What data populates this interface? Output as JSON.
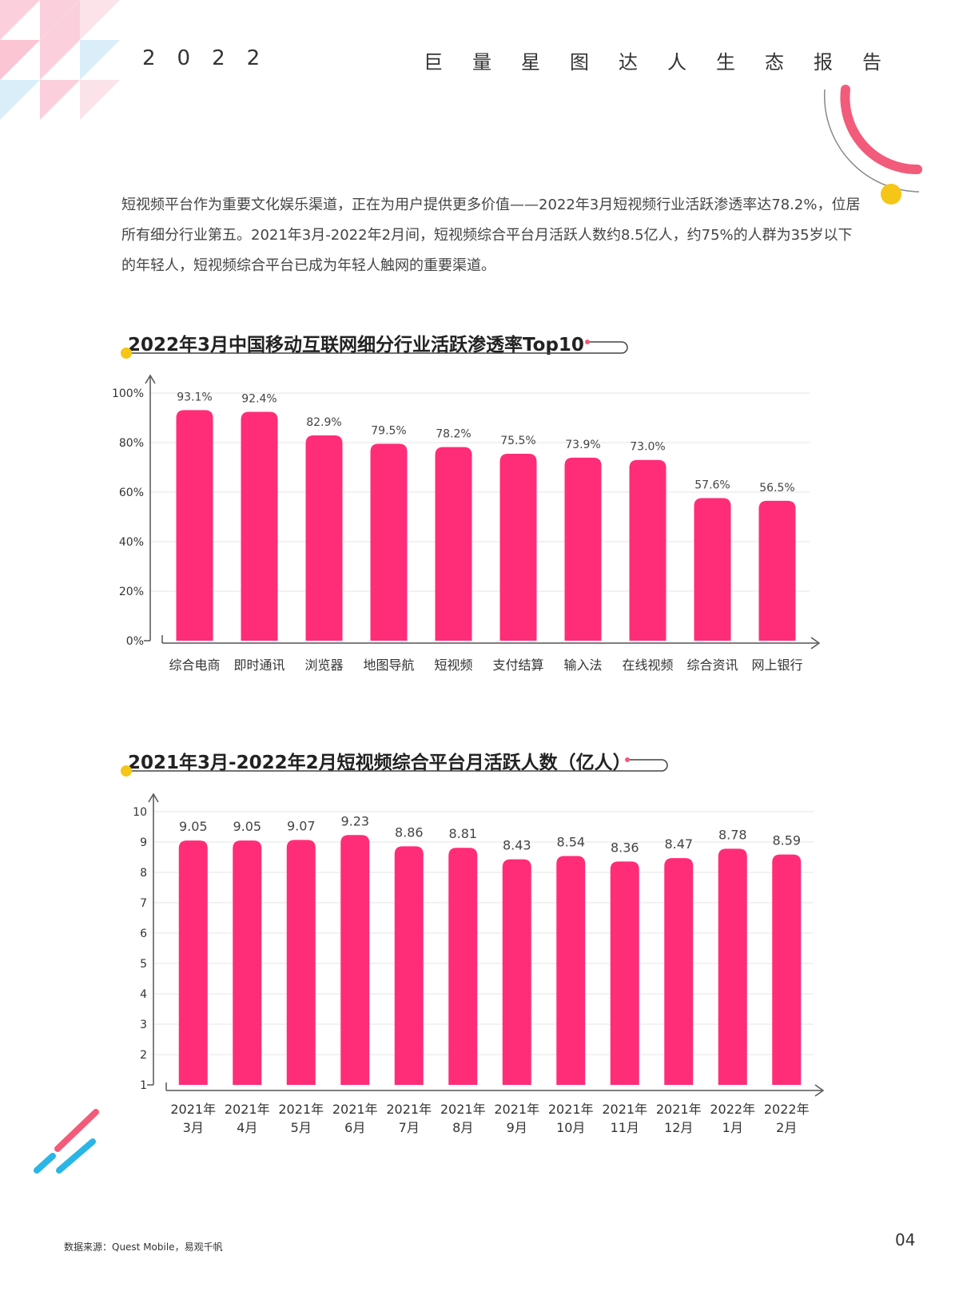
{
  "header": {
    "year": "2022",
    "title": "巨量星图达人生态报告"
  },
  "intro": {
    "text": "短视频平台作为重要文化娱乐渠道，正在为用户提供更多价值——2022年3月短视频行业活跃渗透率达78.2%，位居所有细分行业第五。2021年3月-2022年2月间，短视频综合平台月活跃人数约8.5亿人，约75%的人群为35岁以下的年轻人，短视频综合平台已成为年轻人触网的重要渠道。"
  },
  "colors": {
    "bar": "#ff2d78",
    "accent_yellow": "#f5c518",
    "accent_pink": "#f25b7a",
    "accent_blue": "#29b6e6",
    "grid": "#e6e6e6",
    "axis": "#555555"
  },
  "chart_data": [
    {
      "type": "bar",
      "title": "2022年3月中国移动互联网细分行业活跃渗透率Top10",
      "categories": [
        "综合电商",
        "即时通讯",
        "浏览器",
        "地图导航",
        "短视频",
        "支付结算",
        "输入法",
        "在线视频",
        "综合资讯",
        "网上银行"
      ],
      "values": [
        93.1,
        92.4,
        82.9,
        79.5,
        78.2,
        75.5,
        73.9,
        73.0,
        57.6,
        56.5
      ],
      "value_labels": [
        "93.1%",
        "92.4%",
        "82.9%",
        "79.5%",
        "78.2%",
        "75.5%",
        "73.9%",
        "73.0%",
        "57.6%",
        "56.5%"
      ],
      "yticks": [
        0,
        20,
        40,
        60,
        80,
        100
      ],
      "ytick_labels": [
        "0%",
        "20%",
        "40%",
        "60%",
        "80%",
        "100%"
      ],
      "ylim": [
        0,
        100
      ],
      "grid": true,
      "xlabel": "",
      "ylabel": ""
    },
    {
      "type": "bar",
      "title": "2021年3月-2022年2月短视频综合平台月活跃人数（亿人）",
      "categories": [
        [
          "2021年",
          "3月"
        ],
        [
          "2021年",
          "4月"
        ],
        [
          "2021年",
          "5月"
        ],
        [
          "2021年",
          "6月"
        ],
        [
          "2021年",
          "7月"
        ],
        [
          "2021年",
          "8月"
        ],
        [
          "2021年",
          "9月"
        ],
        [
          "2021年",
          "10月"
        ],
        [
          "2021年",
          "11月"
        ],
        [
          "2021年",
          "12月"
        ],
        [
          "2022年",
          "1月"
        ],
        [
          "2022年",
          "2月"
        ]
      ],
      "values": [
        9.05,
        9.05,
        9.07,
        9.23,
        8.86,
        8.81,
        8.43,
        8.54,
        8.36,
        8.47,
        8.78,
        8.59
      ],
      "value_labels": [
        "9.05",
        "9.05",
        "9.07",
        "9.23",
        "8.86",
        "8.81",
        "8.43",
        "8.54",
        "8.36",
        "8.47",
        "8.78",
        "8.59"
      ],
      "yticks": [
        1,
        2,
        3,
        4,
        5,
        6,
        7,
        8,
        9,
        10
      ],
      "ytick_labels": [
        "1",
        "2",
        "3",
        "4",
        "5",
        "6",
        "7",
        "8",
        "9",
        "10"
      ],
      "ylim": [
        1,
        10
      ],
      "grid": true,
      "xlabel": "",
      "ylabel": ""
    }
  ],
  "footer": {
    "source": "数据来源：Quest Mobile，易观千帆",
    "page_number": "04"
  }
}
